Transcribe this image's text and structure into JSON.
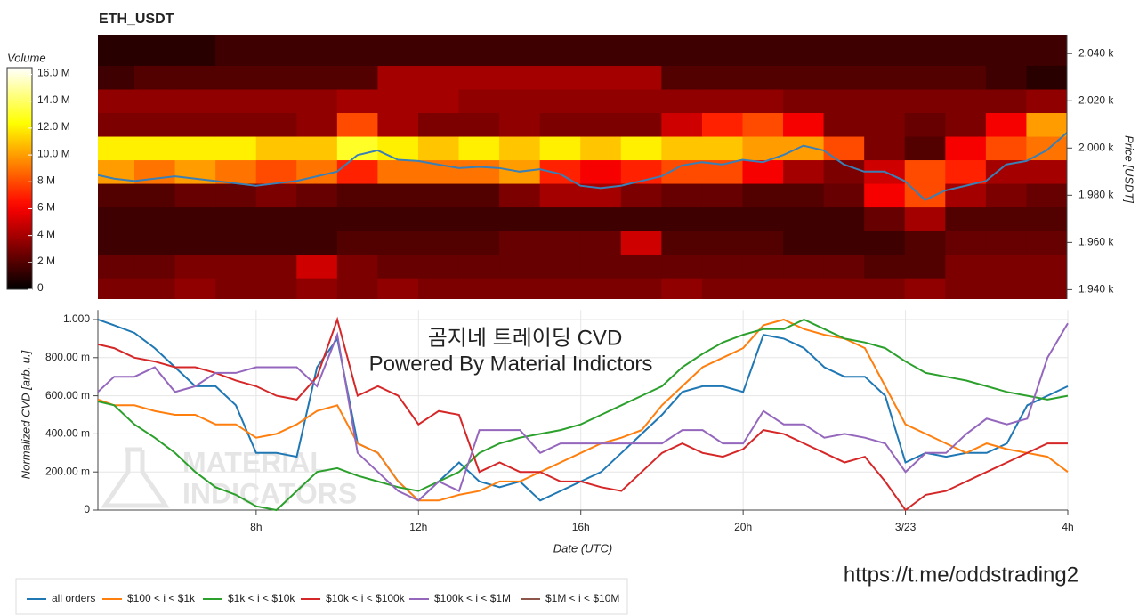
{
  "chart_data": [
    {
      "type": "heatmap",
      "title": "ETH_USDT",
      "y_label": "Price [USDT]",
      "x_bins": [
        4.1,
        5,
        6,
        7,
        8,
        9,
        10,
        11,
        12,
        13,
        14,
        15,
        16,
        17,
        18,
        19,
        20,
        21,
        22,
        23,
        24,
        25,
        26,
        27,
        28
      ],
      "price_bins": [
        1936,
        1945,
        1955,
        1965,
        1975,
        1985,
        1995,
        2005,
        2015,
        2025,
        2035,
        2048
      ],
      "z": [
        [
          3000000.0,
          3000000.0,
          3500000.0,
          3000000.0,
          3000000.0,
          3500000.0,
          3000000.0,
          3500000.0,
          3000000.0,
          3000000.0,
          3000000.0,
          3000000.0,
          3000000.0,
          3000000.0,
          3500000.0,
          3000000.0,
          3000000.0,
          3000000.0,
          3000000.0,
          3000000.0,
          3500000.0,
          3000000.0,
          3000000.0,
          3000000.0
        ],
        [
          2500000.0,
          2500000.0,
          3000000.0,
          3000000.0,
          3000000.0,
          5000000.0,
          3000000.0,
          2500000.0,
          2500000.0,
          2500000.0,
          2500000.0,
          2500000.0,
          2500000.0,
          2500000.0,
          2500000.0,
          2500000.0,
          2500000.0,
          2500000.0,
          2500000.0,
          2000000.0,
          2000000.0,
          3000000.0,
          3000000.0,
          3000000.0
        ],
        [
          1500000.0,
          1500000.0,
          1500000.0,
          1500000.0,
          1500000.0,
          1500000.0,
          2000000.0,
          2000000.0,
          2000000.0,
          2000000.0,
          2500000.0,
          2500000.0,
          2500000.0,
          5000000.0,
          2000000.0,
          2000000.0,
          2000000.0,
          1500000.0,
          1500000.0,
          1500000.0,
          2000000.0,
          2500000.0,
          2500000.0,
          2500000.0
        ],
        [
          1500000.0,
          1500000.0,
          1500000.0,
          1500000.0,
          1500000.0,
          1500000.0,
          1500000.0,
          1500000.0,
          1500000.0,
          1500000.0,
          1500000.0,
          1500000.0,
          1500000.0,
          1500000.0,
          1500000.0,
          1500000.0,
          1500000.0,
          1500000.0,
          1500000.0,
          2500000.0,
          4000000.0,
          2000000.0,
          2000000.0,
          2000000.0
        ],
        [
          2000000.0,
          2000000.0,
          2500000.0,
          2500000.0,
          3000000.0,
          2500000.0,
          2000000.0,
          2000000.0,
          2000000.0,
          2000000.0,
          3000000.0,
          4000000.0,
          4000000.0,
          3000000.0,
          2500000.0,
          2500000.0,
          2000000.0,
          2000000.0,
          2500000.0,
          6000000.0,
          8000000.0,
          4000000.0,
          3000000.0,
          2500000.0
        ],
        [
          10000000.0,
          9000000.0,
          10000000.0,
          9000000.0,
          8000000.0,
          9000000.0,
          7000000.0,
          9000000.0,
          9000000.0,
          9000000.0,
          10000000.0,
          7000000.0,
          6000000.0,
          7000000.0,
          8000000.0,
          8000000.0,
          6000000.0,
          4000000.0,
          3000000.0,
          5000000.0,
          8000000.0,
          7000000.0,
          4000000.0,
          4000000.0
        ],
        [
          12000000.0,
          12000000.0,
          12000000.0,
          12000000.0,
          11000000.0,
          11000000.0,
          13000000.0,
          12000000.0,
          11000000.0,
          12000000.0,
          11000000.0,
          12000000.0,
          11000000.0,
          12000000.0,
          11000000.0,
          11000000.0,
          10000000.0,
          10000000.0,
          8000000.0,
          3000000.0,
          2000000.0,
          6000000.0,
          8000000.0,
          9000000.0
        ],
        [
          3000000.0,
          3000000.0,
          3000000.0,
          3000000.0,
          3000000.0,
          3500000.0,
          8000000.0,
          4000000.0,
          3000000.0,
          3000000.0,
          3500000.0,
          3000000.0,
          3000000.0,
          3000000.0,
          5000000.0,
          7000000.0,
          8000000.0,
          6000000.0,
          3000000.0,
          3000000.0,
          2500000.0,
          3000000.0,
          6000000.0,
          10000000.0
        ],
        [
          3500000.0,
          3500000.0,
          3500000.0,
          3500000.0,
          3500000.0,
          3500000.0,
          4000000.0,
          4000000.0,
          4000000.0,
          3500000.0,
          3500000.0,
          3500000.0,
          3500000.0,
          3500000.0,
          3500000.0,
          3500000.0,
          3500000.0,
          3000000.0,
          3000000.0,
          3000000.0,
          3000000.0,
          3000000.0,
          3000000.0,
          3500000.0
        ],
        [
          1500000.0,
          2000000.0,
          2000000.0,
          2000000.0,
          2000000.0,
          2000000.0,
          2000000.0,
          4000000.0,
          4000000.0,
          4000000.0,
          4000000.0,
          4000000.0,
          4000000.0,
          4000000.0,
          2000000.0,
          2000000.0,
          2000000.0,
          2000000.0,
          2000000.0,
          2000000.0,
          2000000.0,
          2000000.0,
          1500000.0,
          1000000.0
        ],
        [
          1000000.0,
          1000000.0,
          1000000.0,
          1500000.0,
          1500000.0,
          1500000.0,
          1500000.0,
          1500000.0,
          1500000.0,
          1500000.0,
          1500000.0,
          1500000.0,
          1500000.0,
          1500000.0,
          1500000.0,
          1500000.0,
          1500000.0,
          1500000.0,
          1500000.0,
          1500000.0,
          1500000.0,
          1500000.0,
          1500000.0,
          1500000.0
        ]
      ],
      "price_line": {
        "color": "#3a7fb5",
        "x": [
          4.1,
          4.5,
          5,
          5.5,
          6,
          6.5,
          7,
          7.5,
          8,
          8.5,
          9,
          9.5,
          10,
          10.5,
          11,
          11.5,
          12,
          12.5,
          13,
          13.5,
          14,
          14.5,
          15,
          15.5,
          16,
          16.5,
          17,
          17.5,
          18,
          18.5,
          19,
          19.5,
          20,
          20.5,
          21,
          21.5,
          22,
          22.5,
          23,
          23.5,
          24,
          24.5,
          25,
          25.5,
          26,
          26.5,
          27,
          27.5,
          28
        ],
        "values": [
          1988.5,
          1987,
          1986,
          1987,
          1988,
          1987,
          1986,
          1985,
          1984,
          1985,
          1986,
          1988,
          1990,
          1997,
          1999,
          1995,
          1994.5,
          1993,
          1991.5,
          1992,
          1991.5,
          1990,
          1991,
          1989,
          1984,
          1983,
          1984,
          1986,
          1988,
          1992.6,
          1994,
          1993,
          1995,
          1994,
          1997,
          2001,
          1999,
          1993,
          1990,
          1990,
          1986,
          1978,
          1982,
          1984,
          1986,
          1993,
          1994.5,
          1999,
          2006.5
        ]
      },
      "xlim": [
        4.1,
        28
      ],
      "ylim": [
        1936,
        2048
      ],
      "yticks": [
        {
          "value": 1940,
          "label": "1.940 k"
        },
        {
          "value": 1960,
          "label": "1.960 k"
        },
        {
          "value": 1980,
          "label": "1.980 k"
        },
        {
          "value": 2000,
          "label": "2.000 k"
        },
        {
          "value": 2020,
          "label": "2.020 k"
        },
        {
          "value": 2040,
          "label": "2.040 k"
        }
      ],
      "colorbar": {
        "title": "Volume",
        "colormap": "hot",
        "clim": [
          0,
          16500000.0
        ],
        "ticks": [
          0,
          {
            "value": 2000000.0,
            "label": "2 M"
          },
          {
            "value": 4000000.0,
            "label": "4 M"
          },
          {
            "value": 6000000.0,
            "label": "6 M"
          },
          {
            "value": 8000000.0,
            "label": "8 M"
          },
          {
            "value": 10000000.0,
            "label": "10.0 M"
          },
          {
            "value": 12000000.0,
            "label": "12.0 M"
          },
          {
            "value": 14000000.0,
            "label": "14.0 M"
          },
          {
            "value": 16000000.0,
            "label": "16.0 M"
          }
        ]
      }
    },
    {
      "type": "line",
      "x_label": "Date (UTC)",
      "y_label": "Normalized CVD [arb. u.]",
      "annotations": [
        "곰지네 트레이딩 CVD",
        "Powered By Material Indictors"
      ],
      "watermark": [
        "MATERIAL",
        "INDICATORS"
      ],
      "x": [
        4.1,
        4.5,
        5,
        5.5,
        6,
        6.5,
        7,
        7.5,
        8,
        8.5,
        9,
        9.5,
        10,
        10.5,
        11,
        11.5,
        12,
        12.5,
        13,
        13.5,
        14,
        14.5,
        15,
        15.5,
        16,
        16.5,
        17,
        17.5,
        18,
        18.5,
        19,
        19.5,
        20,
        20.5,
        21,
        21.5,
        22,
        22.5,
        23,
        23.5,
        24,
        24.5,
        25,
        25.5,
        26,
        26.5,
        27,
        27.5,
        28
      ],
      "series": [
        {
          "name": "all orders",
          "color": "#1f77b4",
          "values": [
            1.0,
            0.97,
            0.93,
            0.85,
            0.75,
            0.65,
            0.65,
            0.55,
            0.3,
            0.3,
            0.28,
            0.75,
            0.9,
            0.35,
            0.3,
            0.15,
            0.05,
            0.15,
            0.25,
            0.15,
            0.12,
            0.15,
            0.05,
            0.1,
            0.15,
            0.2,
            0.3,
            0.4,
            0.5,
            0.62,
            0.65,
            0.65,
            0.62,
            0.92,
            0.9,
            0.85,
            0.75,
            0.7,
            0.7,
            0.6,
            0.25,
            0.3,
            0.28,
            0.3,
            0.3,
            0.35,
            0.55,
            0.6,
            0.65
          ]
        },
        {
          "name": "$100 < i < $1k",
          "color": "#ff7f0e",
          "values": [
            0.58,
            0.55,
            0.55,
            0.52,
            0.5,
            0.5,
            0.45,
            0.45,
            0.38,
            0.4,
            0.45,
            0.52,
            0.55,
            0.35,
            0.3,
            0.15,
            0.05,
            0.05,
            0.08,
            0.1,
            0.15,
            0.15,
            0.2,
            0.25,
            0.3,
            0.35,
            0.38,
            0.42,
            0.55,
            0.65,
            0.75,
            0.8,
            0.85,
            0.97,
            1.0,
            0.95,
            0.92,
            0.9,
            0.85,
            0.65,
            0.45,
            0.4,
            0.35,
            0.3,
            0.35,
            0.32,
            0.3,
            0.28,
            0.2
          ]
        },
        {
          "name": "$1k < i < $10k",
          "color": "#2ca02c",
          "values": [
            0.57,
            0.55,
            0.45,
            0.38,
            0.3,
            0.2,
            0.12,
            0.08,
            0.02,
            0.0,
            0.1,
            0.2,
            0.22,
            0.18,
            0.15,
            0.12,
            0.1,
            0.15,
            0.2,
            0.3,
            0.35,
            0.38,
            0.4,
            0.42,
            0.45,
            0.5,
            0.55,
            0.6,
            0.65,
            0.75,
            0.82,
            0.88,
            0.92,
            0.95,
            0.95,
            1.0,
            0.95,
            0.9,
            0.88,
            0.85,
            0.78,
            0.72,
            0.7,
            0.68,
            0.65,
            0.62,
            0.6,
            0.58,
            0.6
          ]
        },
        {
          "name": "$10k < i < $100k",
          "color": "#d62728",
          "values": [
            0.87,
            0.85,
            0.8,
            0.78,
            0.75,
            0.75,
            0.72,
            0.68,
            0.65,
            0.6,
            0.58,
            0.7,
            1.0,
            0.6,
            0.65,
            0.6,
            0.45,
            0.52,
            0.5,
            0.2,
            0.25,
            0.2,
            0.2,
            0.15,
            0.15,
            0.12,
            0.1,
            0.2,
            0.3,
            0.35,
            0.3,
            0.28,
            0.32,
            0.42,
            0.4,
            0.35,
            0.3,
            0.25,
            0.28,
            0.15,
            0.0,
            0.08,
            0.1,
            0.15,
            0.2,
            0.25,
            0.3,
            0.35,
            0.35
          ]
        },
        {
          "name": "$100k < i < $1M",
          "color": "#9467bd",
          "values": [
            0.62,
            0.7,
            0.7,
            0.75,
            0.62,
            0.65,
            0.72,
            0.72,
            0.75,
            0.75,
            0.75,
            0.65,
            0.92,
            0.3,
            0.2,
            0.1,
            0.05,
            0.15,
            0.1,
            0.42,
            0.42,
            0.42,
            0.3,
            0.35,
            0.35,
            0.35,
            0.35,
            0.35,
            0.35,
            0.42,
            0.42,
            0.35,
            0.35,
            0.52,
            0.45,
            0.45,
            0.38,
            0.4,
            0.38,
            0.35,
            0.2,
            0.3,
            0.3,
            0.4,
            0.48,
            0.45,
            0.48,
            0.8,
            0.98
          ]
        },
        {
          "name": "$1M < i < $10M",
          "color": "#8c564b",
          "values": [
            null,
            null,
            null,
            null,
            null,
            null,
            null,
            null,
            null,
            null,
            null,
            null,
            null,
            null,
            null,
            null,
            null,
            null,
            null,
            null,
            null,
            null,
            null,
            null,
            null,
            null,
            null,
            null,
            null,
            null,
            null,
            null,
            null,
            null,
            null,
            null,
            null,
            null,
            null,
            null,
            null,
            null,
            null,
            null,
            null,
            null,
            null,
            null,
            null
          ]
        }
      ],
      "xlim": [
        4.1,
        28
      ],
      "ylim": [
        0,
        1.05
      ],
      "xticks": [
        {
          "value": 8,
          "label": "8h"
        },
        {
          "value": 12,
          "label": "12h"
        },
        {
          "value": 16,
          "label": "16h"
        },
        {
          "value": 20,
          "label": "20h"
        },
        {
          "value": 24,
          "label": "3/23"
        },
        {
          "value": 28,
          "label": "4h"
        }
      ],
      "yticks": [
        0,
        {
          "value": 0.2,
          "label": "200.00 m"
        },
        {
          "value": 0.4,
          "label": "400.00 m"
        },
        {
          "value": 0.6,
          "label": "600.00 m"
        },
        {
          "value": 0.8,
          "label": "800.00 m"
        },
        {
          "value": 1,
          "label": "1.000"
        }
      ],
      "grid": true,
      "legend": "bottom"
    }
  ],
  "footer_link": "https://t.me/oddstrading2"
}
